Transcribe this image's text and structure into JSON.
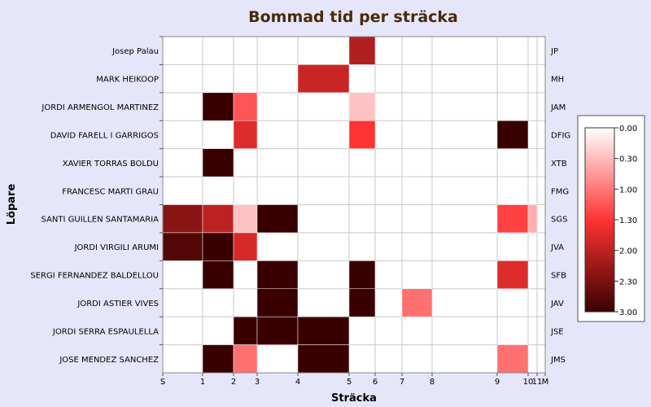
{
  "chart_data": {
    "type": "heatmap",
    "title": "Bommad tid per sträcka",
    "xlabel": "Sträcka",
    "ylabel": "Löpare",
    "x_ticks": [
      "S",
      "1",
      "2",
      "3",
      "4",
      "5",
      "6",
      "7",
      "8",
      "9",
      "10",
      "11",
      "M"
    ],
    "x_tick_positions": [
      0,
      1,
      2,
      3,
      4,
      5,
      6,
      7,
      8,
      9,
      10,
      11,
      12
    ],
    "rows": [
      {
        "name": "Josep Palau",
        "code": "JP"
      },
      {
        "name": "MARK HEIKOOP",
        "code": "MH"
      },
      {
        "name": "JORDI ARMENGOL MARTINEZ",
        "code": "JAM"
      },
      {
        "name": "DAVID FARELL I GARRIGOS",
        "code": "DFIG"
      },
      {
        "name": "XAVIER TORRAS BOLDU",
        "code": "XTB"
      },
      {
        "name": "FRANCESC MARTI GRAU",
        "code": "FMG"
      },
      {
        "name": "SANTI GUILLEN SANTAMARIA",
        "code": "SGS"
      },
      {
        "name": "JORDI VIRGILI ARUMI",
        "code": "JVA"
      },
      {
        "name": "SERGI FERNANDEZ BALDELLOU",
        "code": "SFB"
      },
      {
        "name": "JORDI ASTIER VIVES",
        "code": "JAV"
      },
      {
        "name": "JORDI SERRA ESPAULELLA",
        "code": "JSE"
      },
      {
        "name": "JOSE MENDEZ SANCHEZ",
        "code": "JMS"
      }
    ],
    "cells": [
      {
        "row": 0,
        "leg": 6,
        "value": 2.1
      },
      {
        "row": 1,
        "leg": 5,
        "value": 1.9
      },
      {
        "row": 2,
        "leg": 2,
        "value": 3.0
      },
      {
        "row": 2,
        "leg": 3,
        "value": 1.25
      },
      {
        "row": 2,
        "leg": 6,
        "value": 0.45
      },
      {
        "row": 3,
        "leg": 3,
        "value": 1.75
      },
      {
        "row": 3,
        "leg": 6,
        "value": 1.5
      },
      {
        "row": 3,
        "leg": 10,
        "value": 3.0
      },
      {
        "row": 4,
        "leg": 2,
        "value": 3.0
      },
      {
        "row": 6,
        "leg": 1,
        "value": 2.4
      },
      {
        "row": 6,
        "leg": 2,
        "value": 2.0
      },
      {
        "row": 6,
        "leg": 3,
        "value": 0.45
      },
      {
        "row": 6,
        "leg": 4,
        "value": 3.0
      },
      {
        "row": 6,
        "leg": 10,
        "value": 1.4
      },
      {
        "row": 6,
        "leg": 11,
        "value": 0.6
      },
      {
        "row": 7,
        "leg": 1,
        "value": 2.8
      },
      {
        "row": 7,
        "leg": 2,
        "value": 3.0
      },
      {
        "row": 7,
        "leg": 3,
        "value": 1.8
      },
      {
        "row": 8,
        "leg": 2,
        "value": 3.0
      },
      {
        "row": 8,
        "leg": 4,
        "value": 3.0
      },
      {
        "row": 8,
        "leg": 6,
        "value": 3.0
      },
      {
        "row": 8,
        "leg": 10,
        "value": 1.75
      },
      {
        "row": 9,
        "leg": 4,
        "value": 3.0
      },
      {
        "row": 9,
        "leg": 6,
        "value": 3.0
      },
      {
        "row": 9,
        "leg": 8,
        "value": 1.05
      },
      {
        "row": 10,
        "leg": 3,
        "value": 3.0
      },
      {
        "row": 10,
        "leg": 4,
        "value": 3.0
      },
      {
        "row": 10,
        "leg": 5,
        "value": 3.0
      },
      {
        "row": 11,
        "leg": 2,
        "value": 3.0
      },
      {
        "row": 11,
        "leg": 3,
        "value": 1.05
      },
      {
        "row": 11,
        "leg": 5,
        "value": 3.0
      },
      {
        "row": 11,
        "leg": 10,
        "value": 1.05
      }
    ],
    "color_scale": {
      "min": 0.0,
      "max": 3.0,
      "ticks": [
        "0.00",
        "0.30",
        "1.00",
        "1.30",
        "2.00",
        "2.30",
        "3.00"
      ],
      "colors": [
        "#ffffff",
        "#ff3333",
        "#3a0000"
      ]
    },
    "legend_position": "right",
    "grid": true
  }
}
